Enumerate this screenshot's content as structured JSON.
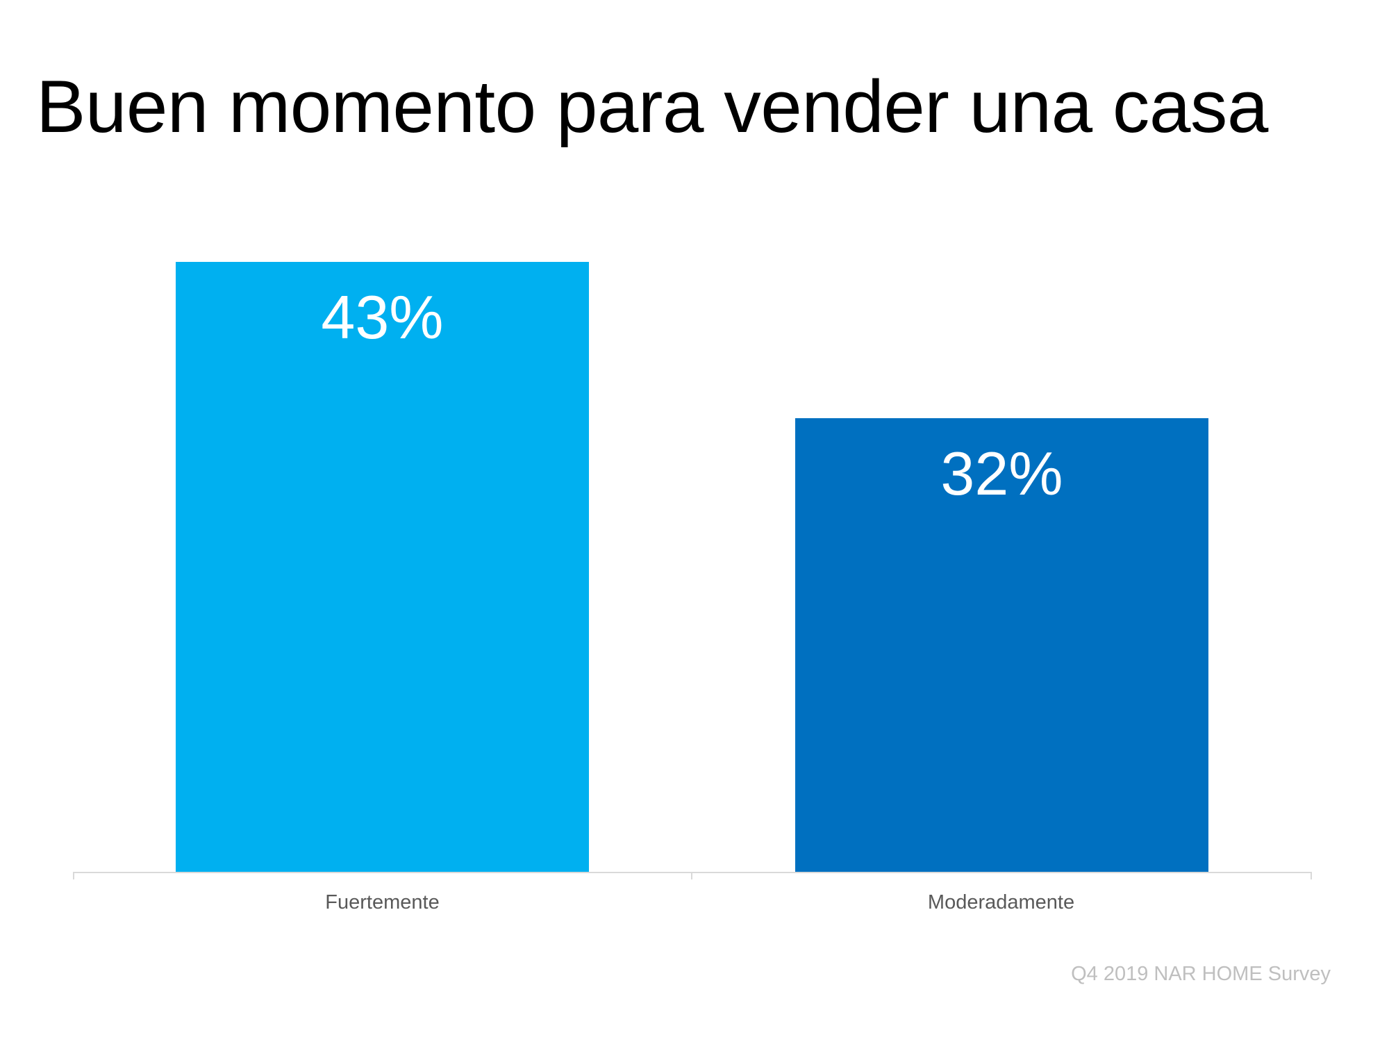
{
  "slide": {
    "title": "Buen momento para vender una casa",
    "source": "Q4 2019 NAR HOME Survey"
  },
  "chart_data": {
    "type": "bar",
    "title": "Buen momento para vender una casa",
    "categories": [
      "Fuertemente",
      "Moderadamente"
    ],
    "values": [
      43,
      32
    ],
    "value_labels": [
      "43%",
      "32%"
    ],
    "colors": [
      "#00B0F0",
      "#0070C0"
    ],
    "xlabel": "",
    "ylabel": "",
    "ylim": [
      0,
      43
    ],
    "grid": false,
    "legend": "none",
    "annotations": [
      "Q4 2019 NAR HOME Survey"
    ]
  }
}
